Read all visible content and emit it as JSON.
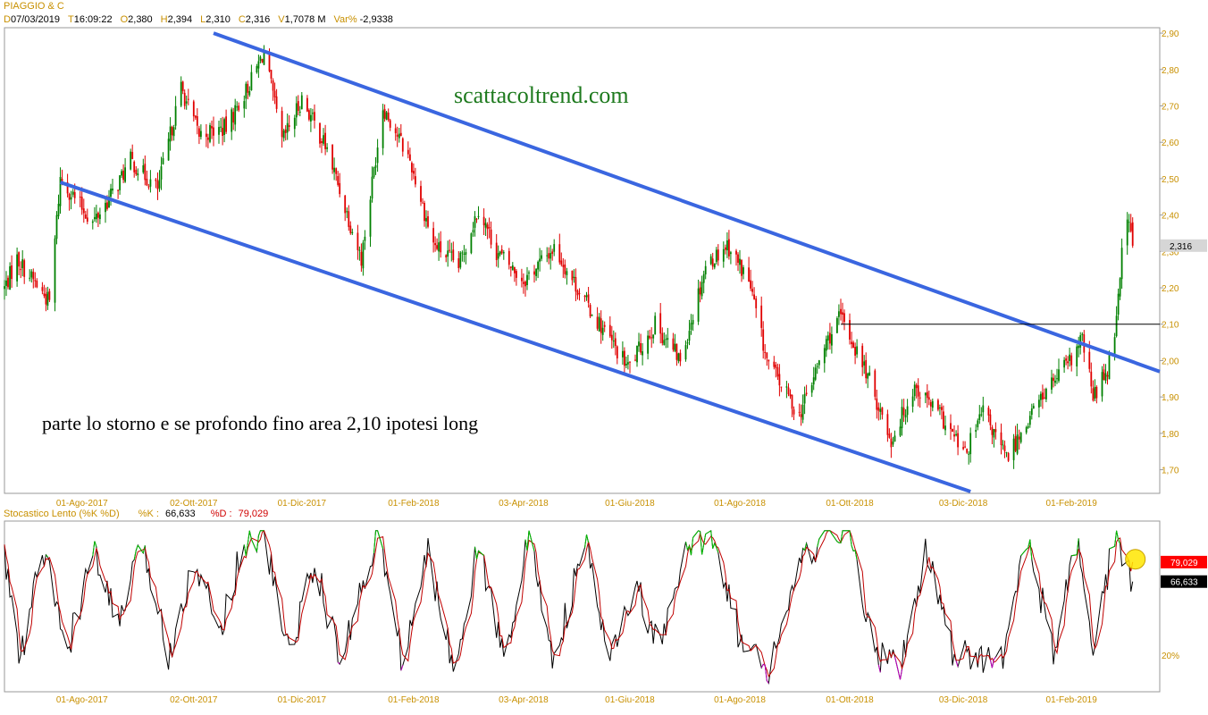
{
  "header": {
    "symbol": "PIAGGIO & C",
    "fields": [
      {
        "key": "D",
        "value": "07/03/2019"
      },
      {
        "key": "T",
        "value": "16:09:22"
      },
      {
        "key": "O",
        "value": "2,380"
      },
      {
        "key": "H",
        "value": "2,394"
      },
      {
        "key": "L",
        "value": "2,310"
      },
      {
        "key": "C",
        "value": "2,316"
      },
      {
        "key": "V",
        "value": "1,7078 M"
      },
      {
        "key": "Var%",
        "value": "-2,9338"
      }
    ]
  },
  "annotations": {
    "watermark": "scattacoltrend.com",
    "note": "parte lo storno e se profondo fino area 2,10 ipotesi long"
  },
  "stochastic": {
    "title": "Stocastico Lento (%K %D)",
    "k_label": "%K :",
    "k_value": "66,633",
    "d_label": "%D :",
    "d_value": "79,029",
    "level_label": "20%"
  },
  "colors": {
    "bullish": "#008000",
    "bearish": "#e00000",
    "trendline": "#3a66e0",
    "axis_text": "#c89000",
    "k_line": "#000000",
    "d_line": "#c00000",
    "overbought": "#00c000",
    "oversold": "#c000c0",
    "highlight_circle": "#ffe600"
  },
  "chart_data": [
    {
      "type": "candlestick",
      "title": "PIAGGIO & C",
      "x_tick_labels": [
        "01-Ago-2017",
        "02-Ott-2017",
        "01-Dic-2017",
        "01-Feb-2018",
        "03-Apr-2018",
        "01-Giu-2018",
        "01-Ago-2018",
        "01-Ott-2018",
        "03-Dic-2018",
        "01-Feb-2019"
      ],
      "y_tick_labels": [
        "2,90",
        "2,80",
        "2,70",
        "2,60",
        "2,50",
        "2,40",
        "2,30",
        "2,20",
        "2,10",
        "2,00",
        "1,90",
        "1,80",
        "1,70"
      ],
      "ylim": [
        1.64,
        2.91
      ],
      "last_price": 2.316,
      "last_price_label": "2,316",
      "price_path": [
        [
          "2017-06-19",
          2.2
        ],
        [
          "2017-06-26",
          2.28
        ],
        [
          "2017-07-05",
          2.22
        ],
        [
          "2017-07-14",
          2.16
        ],
        [
          "2017-07-20",
          2.5
        ],
        [
          "2017-08-07",
          2.38
        ],
        [
          "2017-08-18",
          2.46
        ],
        [
          "2017-08-28",
          2.55
        ],
        [
          "2017-09-12",
          2.47
        ],
        [
          "2017-09-25",
          2.75
        ],
        [
          "2017-10-05",
          2.62
        ],
        [
          "2017-10-20",
          2.64
        ],
        [
          "2017-11-03",
          2.77
        ],
        [
          "2017-11-10",
          2.85
        ],
        [
          "2017-11-20",
          2.6
        ],
        [
          "2017-12-01",
          2.72
        ],
        [
          "2017-12-15",
          2.58
        ],
        [
          "2018-01-03",
          2.28
        ],
        [
          "2018-01-15",
          2.7
        ],
        [
          "2018-01-30",
          2.55
        ],
        [
          "2018-02-12",
          2.32
        ],
        [
          "2018-02-26",
          2.26
        ],
        [
          "2018-03-09",
          2.42
        ],
        [
          "2018-03-19",
          2.3
        ],
        [
          "2018-04-03",
          2.22
        ],
        [
          "2018-04-20",
          2.31
        ],
        [
          "2018-05-10",
          2.14
        ],
        [
          "2018-05-31",
          1.98
        ],
        [
          "2018-06-15",
          2.1
        ],
        [
          "2018-06-29",
          2.0
        ],
        [
          "2018-07-13",
          2.26
        ],
        [
          "2018-07-25",
          2.32
        ],
        [
          "2018-08-06",
          2.22
        ],
        [
          "2018-08-16",
          2.0
        ],
        [
          "2018-09-03",
          1.85
        ],
        [
          "2018-09-19",
          2.06
        ],
        [
          "2018-09-26",
          2.12
        ],
        [
          "2018-10-10",
          1.97
        ],
        [
          "2018-10-24",
          1.78
        ],
        [
          "2018-11-06",
          1.93
        ],
        [
          "2018-11-20",
          1.85
        ],
        [
          "2018-12-04",
          1.74
        ],
        [
          "2018-12-14",
          1.86
        ],
        [
          "2018-12-27",
          1.73
        ],
        [
          "2019-01-08",
          1.84
        ],
        [
          "2019-01-18",
          1.92
        ],
        [
          "2019-02-01",
          2.0
        ],
        [
          "2019-02-07",
          2.06
        ],
        [
          "2019-02-13",
          1.9
        ],
        [
          "2019-02-21",
          1.98
        ],
        [
          "2019-02-25",
          2.08
        ],
        [
          "2019-03-01",
          2.3
        ],
        [
          "2019-03-05",
          2.4
        ],
        [
          "2019-03-07",
          2.316
        ]
      ],
      "trendlines": [
        {
          "name": "upper channel",
          "points": [
            [
              "2017-10-13",
              2.9
            ],
            [
              "2019-03-22",
              1.97
            ]
          ]
        },
        {
          "name": "lower channel",
          "points": [
            [
              "2017-07-20",
              2.49
            ],
            [
              "2018-12-07",
              1.64
            ]
          ]
        }
      ],
      "horizontal_lines": [
        {
          "value": 2.1,
          "from": "2018-09-26",
          "to": "2019-03-22"
        }
      ],
      "grid": false
    },
    {
      "type": "line",
      "title": "Stocastico Lento (%K %D)",
      "x_tick_labels": [
        "01-Ago-2017",
        "02-Ott-2017",
        "01-Dic-2017",
        "01-Feb-2018",
        "03-Apr-2018",
        "01-Giu-2018",
        "01-Ago-2018",
        "01-Ott-2018",
        "03-Dic-2018",
        "01-Feb-2019"
      ],
      "ylim": [
        0,
        100
      ],
      "levels": [
        20,
        80
      ],
      "series": [
        {
          "name": "%K",
          "last": 66.633
        },
        {
          "name": "%D",
          "last": 79.029
        }
      ],
      "k_path": [
        [
          "2017-06-19",
          82
        ],
        [
          "2017-06-28",
          16
        ],
        [
          "2017-07-10",
          88
        ],
        [
          "2017-07-24",
          22
        ],
        [
          "2017-08-07",
          85
        ],
        [
          "2017-08-21",
          40
        ],
        [
          "2017-09-04",
          90
        ],
        [
          "2017-09-18",
          20
        ],
        [
          "2017-10-02",
          82
        ],
        [
          "2017-10-16",
          35
        ],
        [
          "2017-10-30",
          92
        ],
        [
          "2017-11-10",
          96
        ],
        [
          "2017-11-24",
          20
        ],
        [
          "2017-12-08",
          80
        ],
        [
          "2017-12-22",
          15
        ],
        [
          "2018-01-12",
          98
        ],
        [
          "2018-01-26",
          15
        ],
        [
          "2018-02-09",
          85
        ],
        [
          "2018-02-23",
          12
        ],
        [
          "2018-03-09",
          90
        ],
        [
          "2018-03-23",
          18
        ],
        [
          "2018-04-06",
          95
        ],
        [
          "2018-04-20",
          15
        ],
        [
          "2018-05-07",
          92
        ],
        [
          "2018-05-21",
          15
        ],
        [
          "2018-06-04",
          65
        ],
        [
          "2018-06-18",
          22
        ],
        [
          "2018-07-02",
          85
        ],
        [
          "2018-07-18",
          98
        ],
        [
          "2018-08-01",
          30
        ],
        [
          "2018-08-16",
          8
        ],
        [
          "2018-09-03",
          75
        ],
        [
          "2018-09-19",
          100
        ],
        [
          "2018-10-01",
          96
        ],
        [
          "2018-10-15",
          20
        ],
        [
          "2018-10-29",
          12
        ],
        [
          "2018-11-13",
          88
        ],
        [
          "2018-11-27",
          20
        ],
        [
          "2018-12-11",
          18
        ],
        [
          "2018-12-24",
          15
        ],
        [
          "2019-01-08",
          95
        ],
        [
          "2019-01-22",
          20
        ],
        [
          "2019-02-04",
          92
        ],
        [
          "2019-02-13",
          18
        ],
        [
          "2019-02-25",
          96
        ],
        [
          "2019-03-07",
          66.633
        ]
      ]
    }
  ]
}
